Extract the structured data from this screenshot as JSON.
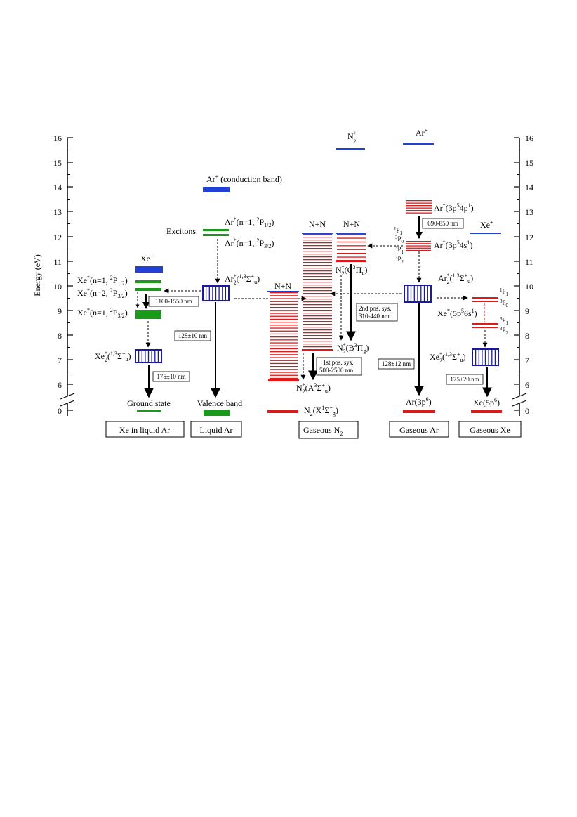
{
  "axis": {
    "ylabel": "Energy (eV)",
    "ticks": [
      "16",
      "15",
      "14",
      "13",
      "12",
      "11",
      "10",
      "9",
      "8",
      "7",
      "6",
      "0"
    ]
  },
  "colors": {
    "green": "#1a9a1a",
    "blue": "#2040d8",
    "navy": "#1a1aa0",
    "red": "#e01818",
    "black": "#000000"
  },
  "columns": {
    "xe_in_liquid_ar": "Xe in liquid Ar",
    "liquid_ar": "Liquid Ar",
    "gaseous_n2": "Gaseous N",
    "gaseous_n2_sub": "2",
    "gaseous_ar": "Gaseous Ar",
    "gaseous_xe": "Gaseous Xe"
  },
  "xe_liquid": {
    "xe_ion": "Xe",
    "xe_ion_sup": "+",
    "n1_p12": {
      "a": "Xe",
      "b": "*",
      "c": "(n=1, ",
      "d": "2",
      "e": "P",
      "f": "1/2",
      "g": ")"
    },
    "n2_p32": {
      "a": "Xe",
      "b": "*",
      "c": "(n=2, ",
      "d": "2",
      "e": "P",
      "f": "3/2",
      "g": ")"
    },
    "n1_p32": {
      "a": "Xe",
      "b": "*",
      "c": "(n=1, ",
      "d": "2",
      "e": "P",
      "f": "3/2",
      "g": ")"
    },
    "ir_box": "1100-1550 nm",
    "excimer": {
      "a": "Xe",
      "b": "*",
      "c": "2",
      "d": "(",
      "e": "1,3",
      "f": "Σ",
      "g": "+",
      "h": "u",
      "i": ")"
    },
    "uv_box": "175±10 nm",
    "ground": "Ground state"
  },
  "liquid_ar": {
    "conduction": "Ar",
    "conduction_sup": "+",
    "conduction_rest": " (conduction band)",
    "excitons": "Excitons",
    "ar_p12": {
      "a": "Ar",
      "b": "*",
      "c": "(n=1, ",
      "d": "2",
      "e": "P",
      "f": "1/2",
      "g": ")"
    },
    "ar_p32": {
      "a": "Ar",
      "b": "*",
      "c": "(n=1, ",
      "d": "2",
      "e": "P",
      "f": "3/2",
      "g": ")"
    },
    "excimer": {
      "a": "Ar",
      "b": "*",
      "c": "2",
      "d": "(",
      "e": "1,3",
      "f": "Σ",
      "g": "+",
      "h": "u",
      "i": ")"
    },
    "uv_box": "128±10 nm",
    "valence": "Valence band"
  },
  "n2": {
    "n2_ion": "N",
    "n2_ion_sup": "+",
    "n2_ion_sub": "2",
    "nn_left": "N+N",
    "nn_mid": "N+N",
    "nn_right": "N+N",
    "c_state": {
      "a": "N",
      "b": "*",
      "c": "2",
      "d": "(C",
      "e": "3",
      "f": "Π",
      "g": "u",
      "h": ")"
    },
    "second_pos": "2nd pos. sys.",
    "second_pos_range": "310-440 nm",
    "b_state": {
      "a": "N",
      "b": "*",
      "c": "2",
      "d": "(B",
      "e": "3",
      "f": "Π",
      "g": "g",
      "h": ")"
    },
    "first_pos": "1st pos. sys.",
    "first_pos_range": "500-2500 nm",
    "a_state": {
      "a": "N",
      "b": "*",
      "c": "2",
      "d": "(A",
      "e": "3",
      "f": "Σ",
      "g": "+",
      "h": "u",
      "i": ")"
    },
    "ground": {
      "a": "N",
      "c": "2",
      "d": "(X",
      "e": "1",
      "f": "Σ",
      "g": "+",
      "h": "g",
      "i": ")"
    }
  },
  "gas_ar": {
    "ar_ion": "Ar",
    "ar_ion_sup": "+",
    "ar_4p": {
      "a": "Ar",
      "b": "*",
      "c": "(3p",
      "d": "5",
      "e": "4p",
      "f": "1",
      "g": ")"
    },
    "ir_box": "690-850 nm",
    "ar_4s": {
      "a": "Ar",
      "b": "*",
      "c": "(3p",
      "d": "5",
      "e": "4s",
      "f": "1",
      "g": ")"
    },
    "terms": [
      {
        "sup": "1",
        "term": "P",
        "sub": "1"
      },
      {
        "sup": "3",
        "term": "P",
        "sub": "0"
      },
      {
        "sup": "3",
        "term": "P",
        "sub": "1"
      },
      {
        "sup": "3",
        "term": "P",
        "sub": "2"
      }
    ],
    "excimer": {
      "a": "Ar",
      "b": "*",
      "c": "2",
      "d": "(",
      "e": "1,3",
      "f": "Σ",
      "g": "+",
      "h": "u",
      "i": ")"
    },
    "uv_box": "128±12 nm",
    "ground": {
      "a": "Ar(3p",
      "b": "6",
      "c": ")"
    }
  },
  "gas_xe": {
    "xe_ion": "Xe",
    "xe_ion_sup": "+",
    "terms": [
      {
        "sup": "1",
        "term": "P",
        "sub": "1"
      },
      {
        "sup": "3",
        "term": "P",
        "sub": "0"
      },
      {
        "sup": "3",
        "term": "P",
        "sub": "1"
      },
      {
        "sup": "3",
        "term": "P",
        "sub": "2"
      }
    ],
    "xe_6s": {
      "a": "Xe",
      "b": "*",
      "c": "(5p",
      "d": "5",
      "e": "6s",
      "f": "1",
      "g": ")"
    },
    "excimer": {
      "a": "Xe",
      "b": "*",
      "c": "2",
      "d": "(",
      "e": "1,3",
      "f": "Σ",
      "g": "+",
      "h": "u",
      "i": ")"
    },
    "uv_box": "175±20 nm",
    "ground": {
      "a": "Xe(5p",
      "b": "6",
      "c": ")"
    }
  }
}
